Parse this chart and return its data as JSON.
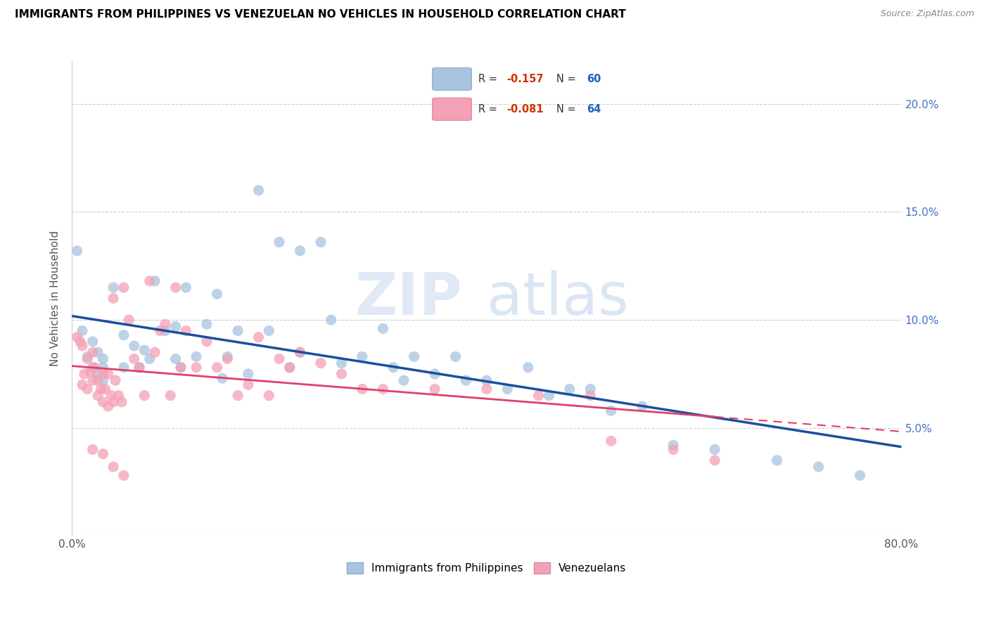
{
  "title": "IMMIGRANTS FROM PHILIPPINES VS VENEZUELAN NO VEHICLES IN HOUSEHOLD CORRELATION CHART",
  "source": "Source: ZipAtlas.com",
  "ylabel": "No Vehicles in Household",
  "x_min": 0.0,
  "x_max": 0.8,
  "y_min": 0.0,
  "y_max": 0.22,
  "y_ticks": [
    0.05,
    0.1,
    0.15,
    0.2
  ],
  "y_tick_labels": [
    "5.0%",
    "10.0%",
    "15.0%",
    "20.0%"
  ],
  "x_ticks": [
    0.0,
    0.1,
    0.2,
    0.3,
    0.4,
    0.5,
    0.6,
    0.7,
    0.8
  ],
  "x_tick_labels": [
    "0.0%",
    "",
    "",
    "",
    "",
    "",
    "",
    "",
    "80.0%"
  ],
  "blue_R": -0.157,
  "blue_N": 60,
  "pink_R": -0.081,
  "pink_N": 64,
  "blue_color": "#a8c4e0",
  "pink_color": "#f4a0b5",
  "blue_line_color": "#1a4fa0",
  "pink_line_color": "#e0406a",
  "watermark_zip": "ZIP",
  "watermark_atlas": "atlas",
  "blue_scatter_x": [
    0.005,
    0.01,
    0.015,
    0.02,
    0.02,
    0.025,
    0.025,
    0.03,
    0.03,
    0.03,
    0.04,
    0.05,
    0.05,
    0.06,
    0.065,
    0.07,
    0.075,
    0.08,
    0.09,
    0.1,
    0.1,
    0.105,
    0.11,
    0.12,
    0.13,
    0.14,
    0.145,
    0.15,
    0.16,
    0.17,
    0.18,
    0.19,
    0.2,
    0.21,
    0.22,
    0.22,
    0.24,
    0.25,
    0.26,
    0.28,
    0.3,
    0.31,
    0.32,
    0.33,
    0.35,
    0.37,
    0.38,
    0.4,
    0.42,
    0.44,
    0.46,
    0.48,
    0.5,
    0.52,
    0.55,
    0.58,
    0.62,
    0.68,
    0.72,
    0.76
  ],
  "blue_scatter_y": [
    0.132,
    0.095,
    0.083,
    0.09,
    0.078,
    0.085,
    0.075,
    0.082,
    0.078,
    0.072,
    0.115,
    0.093,
    0.078,
    0.088,
    0.078,
    0.086,
    0.082,
    0.118,
    0.095,
    0.082,
    0.097,
    0.078,
    0.115,
    0.083,
    0.098,
    0.112,
    0.073,
    0.083,
    0.095,
    0.075,
    0.16,
    0.095,
    0.136,
    0.078,
    0.132,
    0.085,
    0.136,
    0.1,
    0.08,
    0.083,
    0.096,
    0.078,
    0.072,
    0.083,
    0.075,
    0.083,
    0.072,
    0.072,
    0.068,
    0.078,
    0.065,
    0.068,
    0.068,
    0.058,
    0.06,
    0.042,
    0.04,
    0.035,
    0.032,
    0.028
  ],
  "pink_scatter_x": [
    0.005,
    0.008,
    0.01,
    0.01,
    0.012,
    0.015,
    0.015,
    0.018,
    0.02,
    0.02,
    0.022,
    0.025,
    0.025,
    0.028,
    0.03,
    0.03,
    0.032,
    0.035,
    0.035,
    0.038,
    0.04,
    0.04,
    0.042,
    0.045,
    0.048,
    0.05,
    0.055,
    0.06,
    0.065,
    0.07,
    0.075,
    0.08,
    0.085,
    0.09,
    0.095,
    0.1,
    0.105,
    0.11,
    0.12,
    0.13,
    0.14,
    0.15,
    0.16,
    0.17,
    0.18,
    0.19,
    0.2,
    0.21,
    0.22,
    0.24,
    0.26,
    0.28,
    0.3,
    0.35,
    0.4,
    0.45,
    0.5,
    0.52,
    0.58,
    0.62,
    0.02,
    0.03,
    0.04,
    0.05
  ],
  "pink_scatter_y": [
    0.092,
    0.09,
    0.088,
    0.07,
    0.075,
    0.082,
    0.068,
    0.076,
    0.072,
    0.085,
    0.078,
    0.072,
    0.065,
    0.068,
    0.075,
    0.062,
    0.068,
    0.075,
    0.06,
    0.065,
    0.11,
    0.062,
    0.072,
    0.065,
    0.062,
    0.115,
    0.1,
    0.082,
    0.078,
    0.065,
    0.118,
    0.085,
    0.095,
    0.098,
    0.065,
    0.115,
    0.078,
    0.095,
    0.078,
    0.09,
    0.078,
    0.082,
    0.065,
    0.07,
    0.092,
    0.065,
    0.082,
    0.078,
    0.085,
    0.08,
    0.075,
    0.068,
    0.068,
    0.068,
    0.068,
    0.065,
    0.065,
    0.044,
    0.04,
    0.035,
    0.04,
    0.038,
    0.032,
    0.028
  ]
}
